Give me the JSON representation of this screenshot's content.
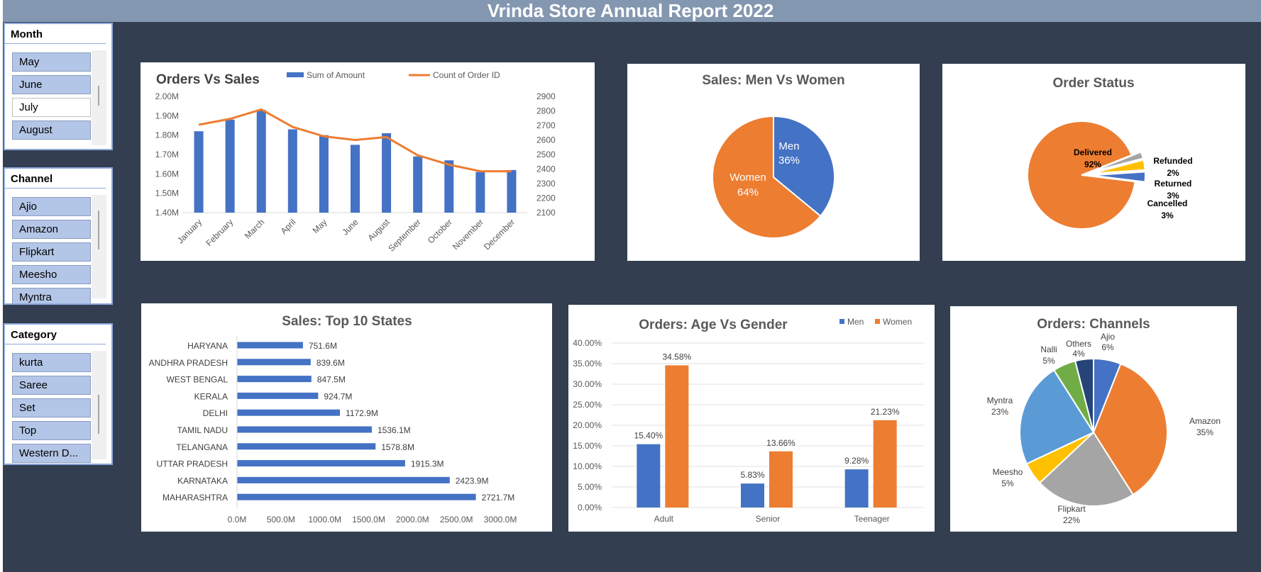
{
  "title": "Vrinda Store Annual Report 2022",
  "slicers": {
    "month": {
      "header": "Month",
      "items": [
        {
          "label": "May",
          "selected": true
        },
        {
          "label": "June",
          "selected": true
        },
        {
          "label": "July",
          "selected": false
        },
        {
          "label": "August",
          "selected": true
        }
      ]
    },
    "channel": {
      "header": "Channel",
      "items": [
        {
          "label": "Ajio"
        },
        {
          "label": "Amazon"
        },
        {
          "label": "Flipkart"
        },
        {
          "label": "Meesho"
        },
        {
          "label": "Myntra"
        }
      ]
    },
    "category": {
      "header": "Category",
      "items": [
        {
          "label": "kurta"
        },
        {
          "label": "Saree"
        },
        {
          "label": "Set"
        },
        {
          "label": "Top"
        },
        {
          "label": "Western D..."
        }
      ]
    }
  },
  "colors": {
    "blue": "#4472c4",
    "orange": "#ed7d31",
    "gray": "#a5a5a5",
    "yellow": "#ffc000",
    "lightblue": "#5b9bd5",
    "green": "#70ad47",
    "navy": "#264478",
    "background": "#333f50",
    "titlebar": "#8497b0"
  },
  "chart_data": [
    {
      "id": "orders_vs_sales",
      "type": "bar",
      "title": "Orders Vs Sales",
      "categories": [
        "January",
        "February",
        "March",
        "April",
        "May",
        "June",
        "August",
        "September",
        "October",
        "November",
        "December"
      ],
      "series": [
        {
          "name": "Sum of Amount",
          "type": "bar",
          "axis": "left",
          "values": [
            1.82,
            1.88,
            1.93,
            1.83,
            1.8,
            1.75,
            1.81,
            1.69,
            1.67,
            1.61,
            1.62
          ]
        },
        {
          "name": "Count of Order ID",
          "type": "line",
          "axis": "right",
          "values": [
            2705,
            2745,
            2810,
            2690,
            2625,
            2600,
            2620,
            2495,
            2430,
            2385,
            2385
          ]
        }
      ],
      "y_left": {
        "ticks": [
          "1.40M",
          "1.50M",
          "1.60M",
          "1.70M",
          "1.80M",
          "1.90M",
          "2.00M"
        ],
        "min": 1.4,
        "max": 2.0
      },
      "y_right": {
        "ticks": [
          "2100",
          "2200",
          "2300",
          "2400",
          "2500",
          "2600",
          "2700",
          "2800",
          "2900"
        ],
        "min": 2100,
        "max": 2900
      },
      "legend": "top"
    },
    {
      "id": "men_vs_women",
      "type": "pie",
      "title": "Sales: Men Vs Women",
      "slices": [
        {
          "name": "Men",
          "value": 36,
          "label": "36%"
        },
        {
          "name": "Women",
          "value": 64,
          "label": "64%"
        }
      ]
    },
    {
      "id": "order_status",
      "type": "pie",
      "title": "Order Status",
      "slices": [
        {
          "name": "Delivered",
          "value": 92,
          "label": "92%"
        },
        {
          "name": "Refunded",
          "value": 2,
          "label": "2%"
        },
        {
          "name": "Returned",
          "value": 3,
          "label": "3%"
        },
        {
          "name": "Cancelled",
          "value": 3,
          "label": "3%"
        }
      ]
    },
    {
      "id": "top_states",
      "type": "bar",
      "orientation": "horizontal",
      "title": "Sales: Top 10 States",
      "categories": [
        "HARYANA",
        "ANDHRA PRADESH",
        "WEST BENGAL",
        "KERALA",
        "DELHI",
        "TAMIL NADU",
        "TELANGANA",
        "UTTAR PRADESH",
        "KARNATAKA",
        "MAHARASHTRA"
      ],
      "values": [
        751.6,
        839.6,
        847.5,
        924.7,
        1172.9,
        1536.1,
        1578.8,
        1915.3,
        2423.9,
        2721.7
      ],
      "value_labels": [
        "751.6M",
        "839.6M",
        "847.5M",
        "924.7M",
        "1172.9M",
        "1536.1M",
        "1578.8M",
        "1915.3M",
        "2423.9M",
        "2721.7M"
      ],
      "x_ticks": [
        "0.0M",
        "500.0M",
        "1000.0M",
        "1500.0M",
        "2000.0M",
        "2500.0M",
        "3000.0M"
      ],
      "xlim": [
        0,
        3000
      ]
    },
    {
      "id": "age_vs_gender",
      "type": "bar",
      "title": "Orders: Age Vs Gender",
      "categories": [
        "Adult",
        "Senior",
        "Teenager"
      ],
      "series": [
        {
          "name": "Men",
          "values": [
            15.4,
            5.83,
            9.28
          ],
          "labels": [
            "15.40%",
            "5.83%",
            "9.28%"
          ]
        },
        {
          "name": "Women",
          "values": [
            34.58,
            13.66,
            21.23
          ],
          "labels": [
            "34.58%",
            "13.66%",
            "21.23%"
          ]
        }
      ],
      "y_ticks": [
        "0.00%",
        "5.00%",
        "10.00%",
        "15.00%",
        "20.00%",
        "25.00%",
        "30.00%",
        "35.00%",
        "40.00%"
      ],
      "ylim": [
        0,
        40
      ],
      "legend": "top-right"
    },
    {
      "id": "channels",
      "type": "pie",
      "title": "Orders: Channels",
      "slices": [
        {
          "name": "Ajio",
          "value": 6,
          "label": "6%"
        },
        {
          "name": "Amazon",
          "value": 35,
          "label": "35%"
        },
        {
          "name": "Flipkart",
          "value": 22,
          "label": "22%"
        },
        {
          "name": "Meesho",
          "value": 5,
          "label": "5%"
        },
        {
          "name": "Myntra",
          "value": 23,
          "label": "23%"
        },
        {
          "name": "Nalli",
          "value": 5,
          "label": "5%"
        },
        {
          "name": "Others",
          "value": 4,
          "label": "4%"
        }
      ]
    }
  ]
}
